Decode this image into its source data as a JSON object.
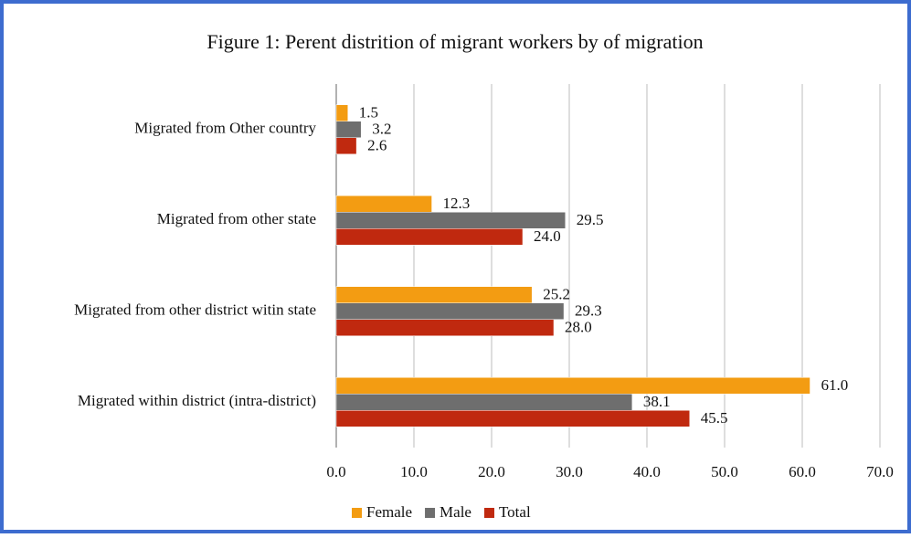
{
  "chart_data": {
    "type": "hbar",
    "title": "Figure 1: Perent distrition of migrant workers by of migration",
    "categories": [
      "Migrated from Other country",
      "Migrated from other state",
      "Migrated from other district witin state",
      "Migrated within district (intra-district)"
    ],
    "series": [
      {
        "name": "Female",
        "color": "#f39c12",
        "values": [
          1.5,
          12.3,
          25.2,
          61.0
        ],
        "value_labels": [
          "1.5",
          "12.3",
          "25.2",
          "61.0"
        ]
      },
      {
        "name": "Male",
        "color": "#6e6e6e",
        "values": [
          3.2,
          29.5,
          29.3,
          38.1
        ],
        "value_labels": [
          "3.2",
          "29.5",
          "29.3",
          "38.1"
        ]
      },
      {
        "name": "Total",
        "color": "#c0290f",
        "values": [
          2.6,
          24.0,
          28.0,
          45.5
        ],
        "value_labels": [
          "2.6",
          "24.0",
          "28.0",
          "45.5"
        ]
      }
    ],
    "xlim": [
      0,
      70
    ],
    "xticks": [
      {
        "value": 0,
        "label": "0.0"
      },
      {
        "value": 10,
        "label": "10.0"
      },
      {
        "value": 20,
        "label": "20.0"
      },
      {
        "value": 30,
        "label": "30.0"
      },
      {
        "value": 40,
        "label": "40.0"
      },
      {
        "value": 50,
        "label": "50.0"
      },
      {
        "value": 60,
        "label": "60.0"
      },
      {
        "value": 70,
        "label": "70.0"
      }
    ],
    "grid": true,
    "legend": "bottom"
  }
}
